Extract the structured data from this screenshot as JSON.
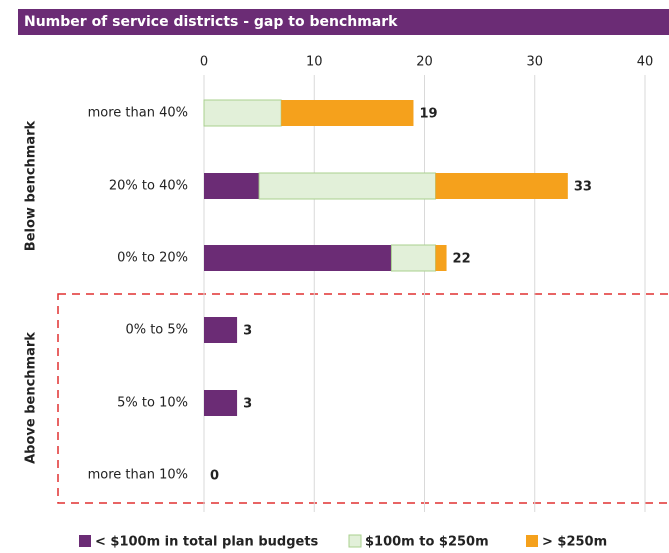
{
  "chart_data": {
    "type": "stacked_barh",
    "title": "Number of service districts - gap to benchmark",
    "categories": [
      "more than 40%",
      "20% to 40%",
      "0% to 20%",
      "0% to 5%",
      "5% to 10%",
      "more than 10%"
    ],
    "groups": [
      "Below benchmark",
      "Above benchmark"
    ],
    "series": [
      {
        "name": "< $100m in total plan budgets",
        "color": "#6b2c75",
        "values": [
          0,
          5,
          17,
          3,
          3,
          0
        ]
      },
      {
        "name": "$100m to $250m",
        "color": "#e2f0d9",
        "values": [
          7,
          16,
          4,
          0,
          0,
          0
        ]
      },
      {
        "name": "> $250m",
        "color": "#f5a11c",
        "values": [
          12,
          12,
          1,
          0,
          0,
          0
        ]
      }
    ],
    "totals": [
      19,
      33,
      22,
      3,
      3,
      0
    ],
    "xlim": [
      0,
      40
    ],
    "xticks": [
      0,
      10,
      20,
      30,
      40
    ],
    "grid": true
  }
}
